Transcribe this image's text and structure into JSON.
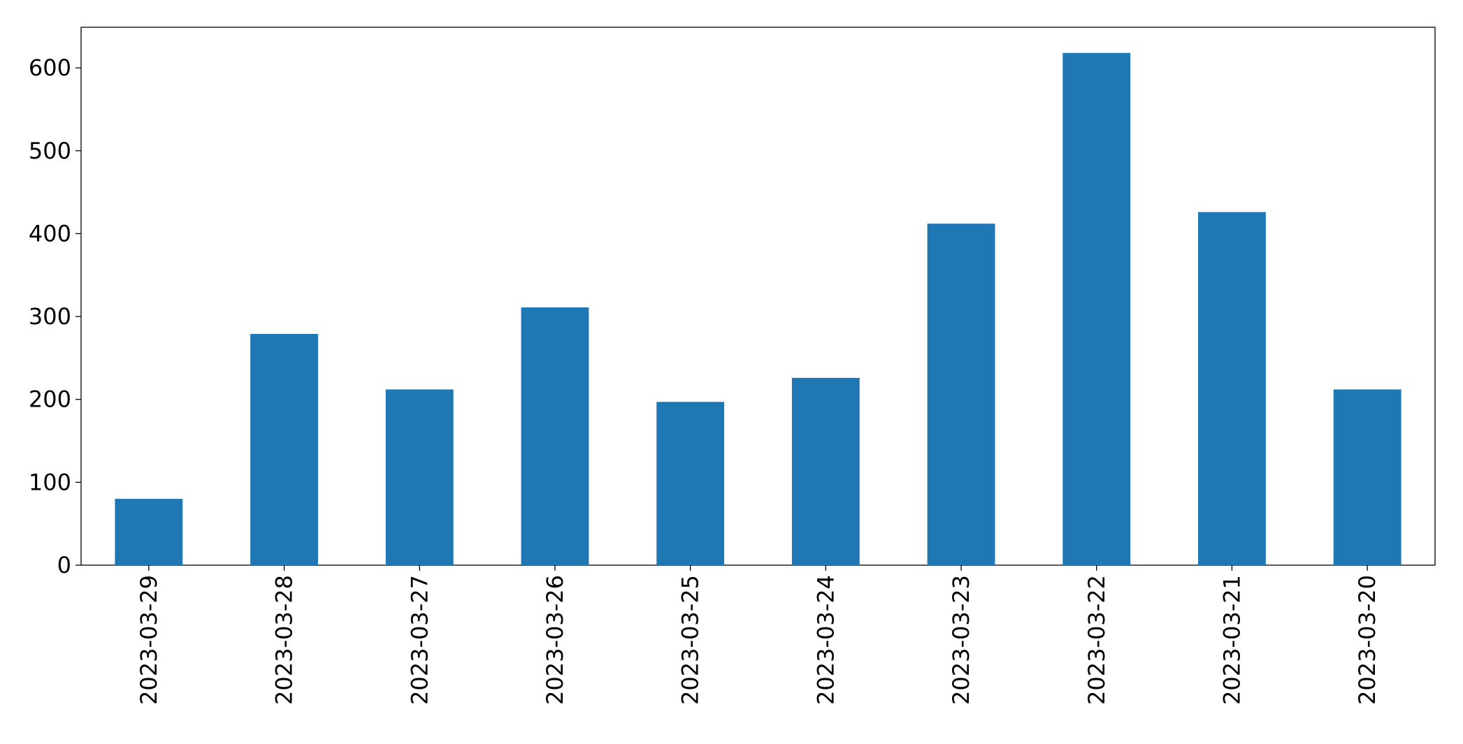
{
  "chart_data": {
    "type": "bar",
    "categories": [
      "2023-03-29",
      "2023-03-28",
      "2023-03-27",
      "2023-03-26",
      "2023-03-25",
      "2023-03-24",
      "2023-03-23",
      "2023-03-22",
      "2023-03-21",
      "2023-03-20"
    ],
    "values": [
      80,
      279,
      212,
      311,
      197,
      226,
      412,
      618,
      426,
      212
    ],
    "color": "#1f77b4",
    "ylim": [
      0,
      649
    ],
    "yticks": [
      0,
      100,
      200,
      300,
      400,
      500,
      600
    ],
    "grid": false
  }
}
